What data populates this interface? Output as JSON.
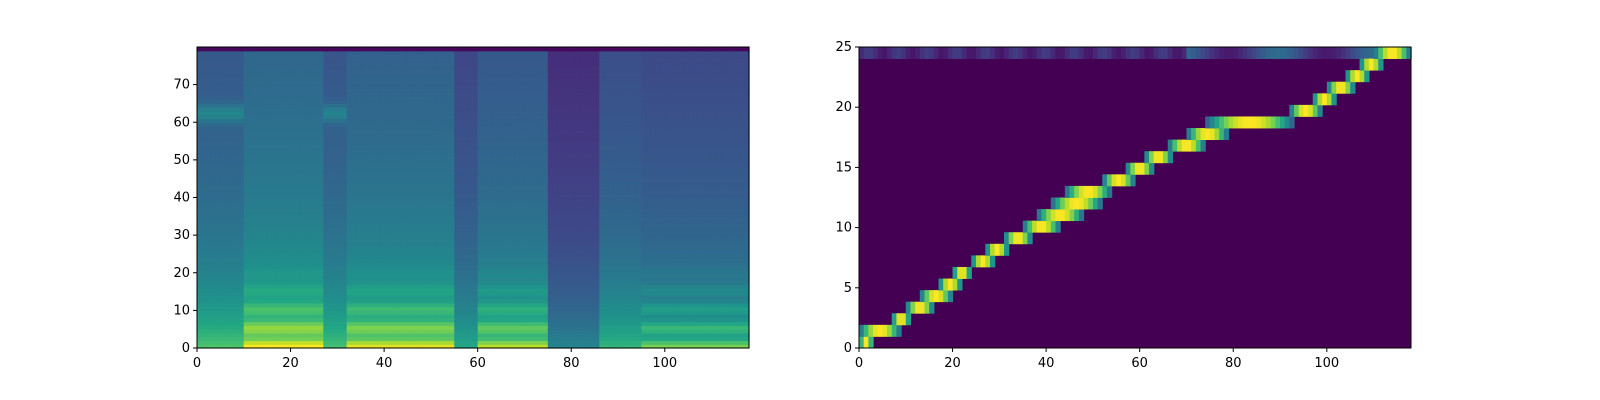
{
  "chart_data": [
    {
      "type": "heatmap",
      "colormap": "viridis",
      "xlim": [
        0,
        118
      ],
      "ylim": [
        0,
        80
      ],
      "x_ticks": [
        0,
        20,
        40,
        60,
        80,
        100
      ],
      "y_ticks": [
        0,
        10,
        20,
        30,
        40,
        50,
        60,
        70
      ],
      "grid": false,
      "energy_segments": [
        {
          "x": [
            0,
            10
          ],
          "level": 0.72,
          "formant_rows": [
            62
          ]
        },
        {
          "x": [
            10,
            27
          ],
          "level": 0.82,
          "harmonics": true
        },
        {
          "x": [
            27,
            32
          ],
          "level": 0.7,
          "formant_rows": [
            62
          ]
        },
        {
          "x": [
            32,
            55
          ],
          "level": 0.78,
          "harmonics": true
        },
        {
          "x": [
            55,
            60
          ],
          "level": 0.6
        },
        {
          "x": [
            60,
            75
          ],
          "level": 0.72,
          "harmonics": true
        },
        {
          "x": [
            75,
            86
          ],
          "level": 0.45
        },
        {
          "x": [
            86,
            95
          ],
          "level": 0.65
        },
        {
          "x": [
            95,
            118
          ],
          "level": 0.62,
          "harmonics": true
        }
      ]
    },
    {
      "type": "heatmap",
      "colormap": "viridis",
      "description_free": true,
      "xlim": [
        0,
        118
      ],
      "ylim": [
        0,
        25
      ],
      "x_ticks": [
        0,
        20,
        40,
        60,
        80,
        100
      ],
      "y_ticks": [
        0,
        5,
        10,
        15,
        20,
        25
      ],
      "grid": false,
      "alignment_path": [
        {
          "x": [
            0,
            3
          ],
          "y": 0
        },
        {
          "x": [
            0,
            9
          ],
          "y": 1
        },
        {
          "x": [
            7,
            11
          ],
          "y": 2
        },
        {
          "x": [
            10,
            16
          ],
          "y": 3
        },
        {
          "x": [
            13,
            20
          ],
          "y": 4
        },
        {
          "x": [
            17,
            22
          ],
          "y": 5
        },
        {
          "x": [
            20,
            24
          ],
          "y": 6
        },
        {
          "x": [
            24,
            29
          ],
          "y": 7
        },
        {
          "x": [
            27,
            32
          ],
          "y": 8
        },
        {
          "x": [
            31,
            37
          ],
          "y": 9
        },
        {
          "x": [
            35,
            43
          ],
          "y": 10
        },
        {
          "x": [
            38,
            48
          ],
          "y": 11
        },
        {
          "x": [
            41,
            52
          ],
          "y": 12
        },
        {
          "x": [
            44,
            54
          ],
          "y": 13
        },
        {
          "x": [
            52,
            59
          ],
          "y": 14
        },
        {
          "x": [
            57,
            63
          ],
          "y": 15
        },
        {
          "x": [
            61,
            67
          ],
          "y": 16
        },
        {
          "x": [
            66,
            74
          ],
          "y": 17
        },
        {
          "x": [
            70,
            79
          ],
          "y": 18
        },
        {
          "x": [
            74,
            93
          ],
          "y": 19
        },
        {
          "x": [
            92,
            99
          ],
          "y": 20
        },
        {
          "x": [
            97,
            102
          ],
          "y": 21
        },
        {
          "x": [
            100,
            106
          ],
          "y": 22
        },
        {
          "x": [
            104,
            109
          ],
          "y": 23
        },
        {
          "x": [
            107,
            112
          ],
          "y": 24
        },
        {
          "x": [
            110,
            118
          ],
          "y": 25
        }
      ],
      "top_row_activity": [
        {
          "x": [
            70,
            118
          ],
          "level": 0.35
        }
      ]
    }
  ]
}
